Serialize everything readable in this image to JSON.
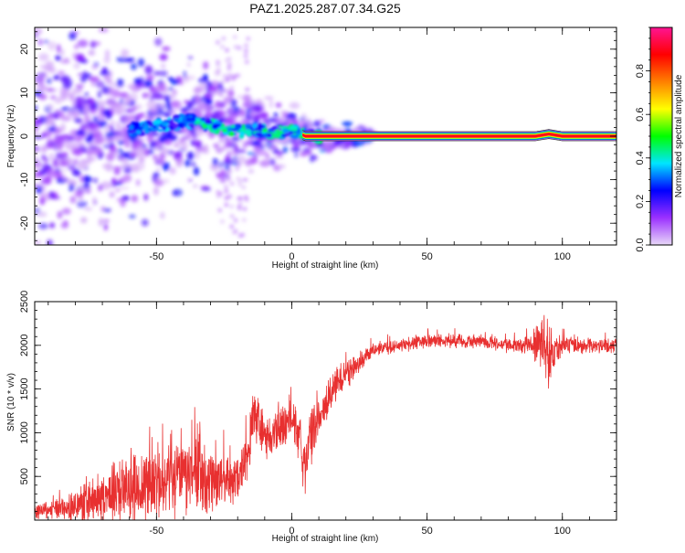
{
  "chart_data": [
    {
      "type": "heatmap",
      "title": "PAZ1.2025.287.07.34.G25",
      "xlabel": "Height of straight line (km)",
      "ylabel": "Frequency (Hz)",
      "xlim": [
        -95,
        120
      ],
      "ylim": [
        -25,
        25
      ],
      "xticks": [
        -50,
        0,
        50,
        100
      ],
      "xtick_labels": [
        "-50",
        "0",
        "50",
        "100"
      ],
      "yticks": [
        20,
        10,
        0,
        -10,
        -20
      ],
      "ytick_labels": [
        "20",
        "10",
        "0",
        "-10",
        "-20"
      ],
      "colorbar": {
        "label": "Normalized spectral amplitude",
        "range": [
          0,
          1
        ],
        "ticks": [
          0.0,
          0.2,
          0.4,
          0.6,
          0.8
        ],
        "tick_labels": [
          "0.0",
          "0.2",
          "0.4",
          "0.6",
          "0.8"
        ],
        "colors": [
          "#e8d8f8",
          "#9b30ff",
          "#0000ff",
          "#00e5ff",
          "#00ff00",
          "#ffff00",
          "#ff8000",
          "#ff0000",
          "#ff1493"
        ]
      },
      "ridge": [
        {
          "x": -58,
          "f": 1.5
        },
        {
          "x": -45,
          "f": 3.0
        },
        {
          "x": -38,
          "f": 3.5
        },
        {
          "x": -30,
          "f": 2.5
        },
        {
          "x": -20,
          "f": 1.0
        },
        {
          "x": -12,
          "f": 1.5
        },
        {
          "x": -5,
          "f": 0.5
        },
        {
          "x": 0,
          "f": 1.5
        },
        {
          "x": 5,
          "f": 0.0
        },
        {
          "x": 20,
          "f": 0.0
        },
        {
          "x": 90,
          "f": 0.0
        },
        {
          "x": 95,
          "f": 0.5
        },
        {
          "x": 100,
          "f": 0.0
        },
        {
          "x": 120,
          "f": 0.0
        }
      ],
      "ridge_band_hz": 1.0
    },
    {
      "type": "line",
      "xlabel": "Height of straight line (km)",
      "ylabel": "SNR (10 * v/v)",
      "xlim": [
        -95,
        120
      ],
      "ylim": [
        0,
        2500
      ],
      "xticks": [
        -50,
        0,
        50,
        100
      ],
      "xtick_labels": [
        "-50",
        "0",
        "50",
        "100"
      ],
      "yticks": [
        500,
        1000,
        1500,
        2000,
        2500
      ],
      "ytick_labels": [
        "500",
        "1000",
        "1500",
        "2000",
        "2500"
      ],
      "color": "#e83030",
      "series": [
        {
          "name": "SNR",
          "x": [
            -95,
            -85,
            -75,
            -65,
            -55,
            -45,
            -35,
            -28,
            -25,
            -20,
            -17,
            -14,
            -10,
            -7,
            -4,
            -2,
            0,
            3,
            5,
            7,
            10,
            15,
            20,
            25,
            30,
            40,
            50,
            60,
            70,
            80,
            88,
            92,
            95,
            97,
            100,
            110,
            120
          ],
          "mean": [
            100,
            130,
            200,
            320,
            400,
            450,
            500,
            420,
            450,
            500,
            700,
            1200,
            950,
            1000,
            1050,
            1100,
            1250,
            900,
            550,
            950,
            1200,
            1500,
            1650,
            1800,
            1950,
            2000,
            2050,
            2050,
            2050,
            2000,
            2000,
            2050,
            1850,
            1950,
            2000,
            2000,
            2000
          ],
          "noise": [
            90,
            120,
            250,
            350,
            400,
            400,
            400,
            350,
            300,
            250,
            300,
            300,
            300,
            250,
            300,
            300,
            300,
            300,
            300,
            300,
            250,
            200,
            150,
            100,
            80,
            80,
            80,
            80,
            80,
            80,
            100,
            300,
            350,
            250,
            100,
            80,
            80
          ]
        }
      ]
    }
  ]
}
